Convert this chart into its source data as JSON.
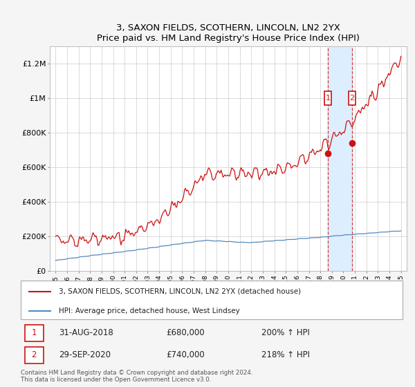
{
  "title": "3, SAXON FIELDS, SCOTHERN, LINCOLN, LN2 2YX",
  "subtitle": "Price paid vs. HM Land Registry's House Price Index (HPI)",
  "ylim": [
    0,
    1300000
  ],
  "yticks": [
    0,
    200000,
    400000,
    600000,
    800000,
    1000000,
    1200000
  ],
  "ytick_labels": [
    "£0",
    "£200K",
    "£400K",
    "£600K",
    "£800K",
    "£1M",
    "£1.2M"
  ],
  "hpi_color": "#5588bb",
  "price_color": "#cc1111",
  "shade_color": "#ddeeff",
  "legend_entry1": "3, SAXON FIELDS, SCOTHERN, LINCOLN, LN2 2YX (detached house)",
  "legend_entry2": "HPI: Average price, detached house, West Lindsey",
  "sale1_year": 2018.667,
  "sale1_price": 680000,
  "sale2_year": 2020.75,
  "sale2_price": 740000,
  "annotation1_date": "31-AUG-2018",
  "annotation1_price": "£680,000",
  "annotation1_pct": "200% ↑ HPI",
  "annotation2_date": "29-SEP-2020",
  "annotation2_price": "£740,000",
  "annotation2_pct": "218% ↑ HPI",
  "footer": "Contains HM Land Registry data © Crown copyright and database right 2024.\nThis data is licensed under the Open Government Licence v3.0.",
  "bg_color": "#f5f5f5",
  "plot_bg_color": "#ffffff",
  "xstart": 1995,
  "xend": 2025
}
